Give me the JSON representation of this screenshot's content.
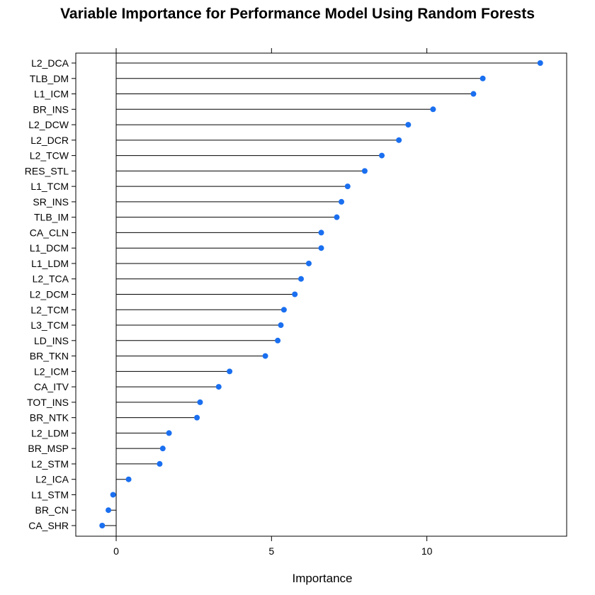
{
  "chart_data": {
    "type": "dotplot",
    "title": "Variable Importance for Performance Model Using Random Forests",
    "xlabel": "Importance",
    "ylabel": "",
    "xlim": [
      -1.3,
      14.5
    ],
    "x_ticks": [
      0,
      5,
      10
    ],
    "grid": false,
    "marker_color": "#1a6ff0",
    "categories": [
      "L2_DCA",
      "TLB_DM",
      "L1_ICM",
      "BR_INS",
      "L2_DCW",
      "L2_DCR",
      "L2_TCW",
      "RES_STL",
      "L1_TCM",
      "SR_INS",
      "TLB_IM",
      "CA_CLN",
      "L1_DCM",
      "L1_LDM",
      "L2_TCA",
      "L2_DCM",
      "L2_TCM",
      "L3_TCM",
      "LD_INS",
      "BR_TKN",
      "L2_ICM",
      "CA_ITV",
      "TOT_INS",
      "BR_NTK",
      "L2_LDM",
      "BR_MSP",
      "L2_STM",
      "L2_ICA",
      "L1_STM",
      "BR_CN",
      "CA_SHR"
    ],
    "values": [
      13.65,
      11.8,
      11.5,
      10.2,
      9.4,
      9.1,
      8.55,
      8.0,
      7.45,
      7.25,
      7.1,
      6.6,
      6.6,
      6.2,
      5.95,
      5.75,
      5.4,
      5.3,
      5.2,
      4.8,
      3.65,
      3.3,
      2.7,
      2.6,
      1.7,
      1.5,
      1.4,
      0.4,
      -0.1,
      -0.25,
      -0.45
    ]
  }
}
